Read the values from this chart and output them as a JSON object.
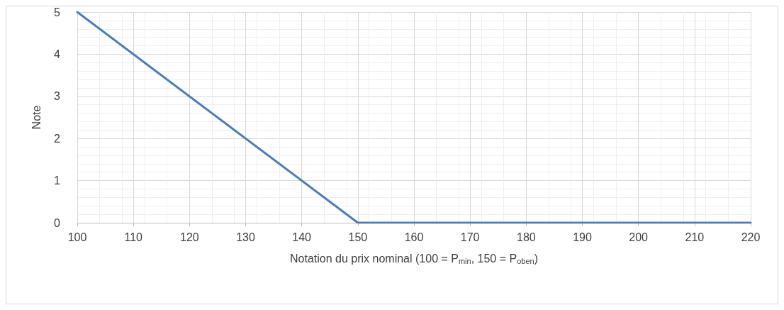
{
  "chart_data": {
    "type": "line",
    "xlabel": "Notation du prix nominal (100 = P$_{min}$, 150 = P$_{oben}$)",
    "ylabel": "Note",
    "x": [
      100,
      150,
      220
    ],
    "series": [
      {
        "color": "#4a7ebb",
        "values": [
          5,
          0,
          0
        ]
      }
    ],
    "xlim": [
      100,
      220
    ],
    "xticks": [
      100,
      110,
      120,
      130,
      140,
      150,
      160,
      170,
      180,
      190,
      200,
      210,
      220
    ],
    "ylim": [
      0,
      5
    ],
    "yticks": [
      0,
      1,
      2,
      3,
      4,
      5
    ],
    "grid": true,
    "marker": "none",
    "line_style": "solid"
  }
}
